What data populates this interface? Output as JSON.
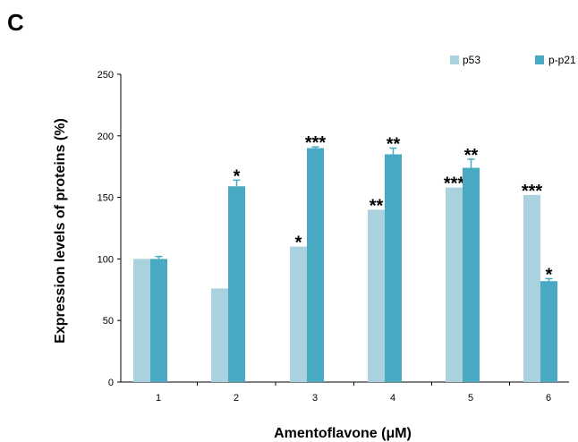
{
  "panel_label": "C",
  "colors": {
    "p53": "#a9d1de",
    "pp21": "#4aa9c2"
  },
  "chart_data": {
    "type": "bar",
    "title": "",
    "xlabel": "Amentoflavone (μM)",
    "ylabel": "Expression levels of proteins (%)",
    "ylim": [
      0,
      250
    ],
    "yticks": [
      "0",
      "50",
      "100",
      "150",
      "200",
      "250"
    ],
    "categories": [
      "1",
      "2",
      "3",
      "4",
      "5",
      "6"
    ],
    "legend_position": "top-right",
    "series": [
      {
        "name": "p53",
        "values": [
          100,
          76,
          110,
          140,
          158,
          152
        ],
        "errors": [
          0,
          0,
          0,
          0,
          0,
          0
        ],
        "annotations": [
          "",
          "",
          "*",
          "**",
          "***",
          "***"
        ]
      },
      {
        "name": "p-p21",
        "values": [
          100,
          159,
          190,
          185,
          174,
          82
        ],
        "errors": [
          2,
          5,
          1,
          5,
          7,
          2
        ],
        "annotations": [
          "",
          "*",
          "***",
          "**",
          "**",
          "*"
        ]
      }
    ],
    "grid": false
  }
}
